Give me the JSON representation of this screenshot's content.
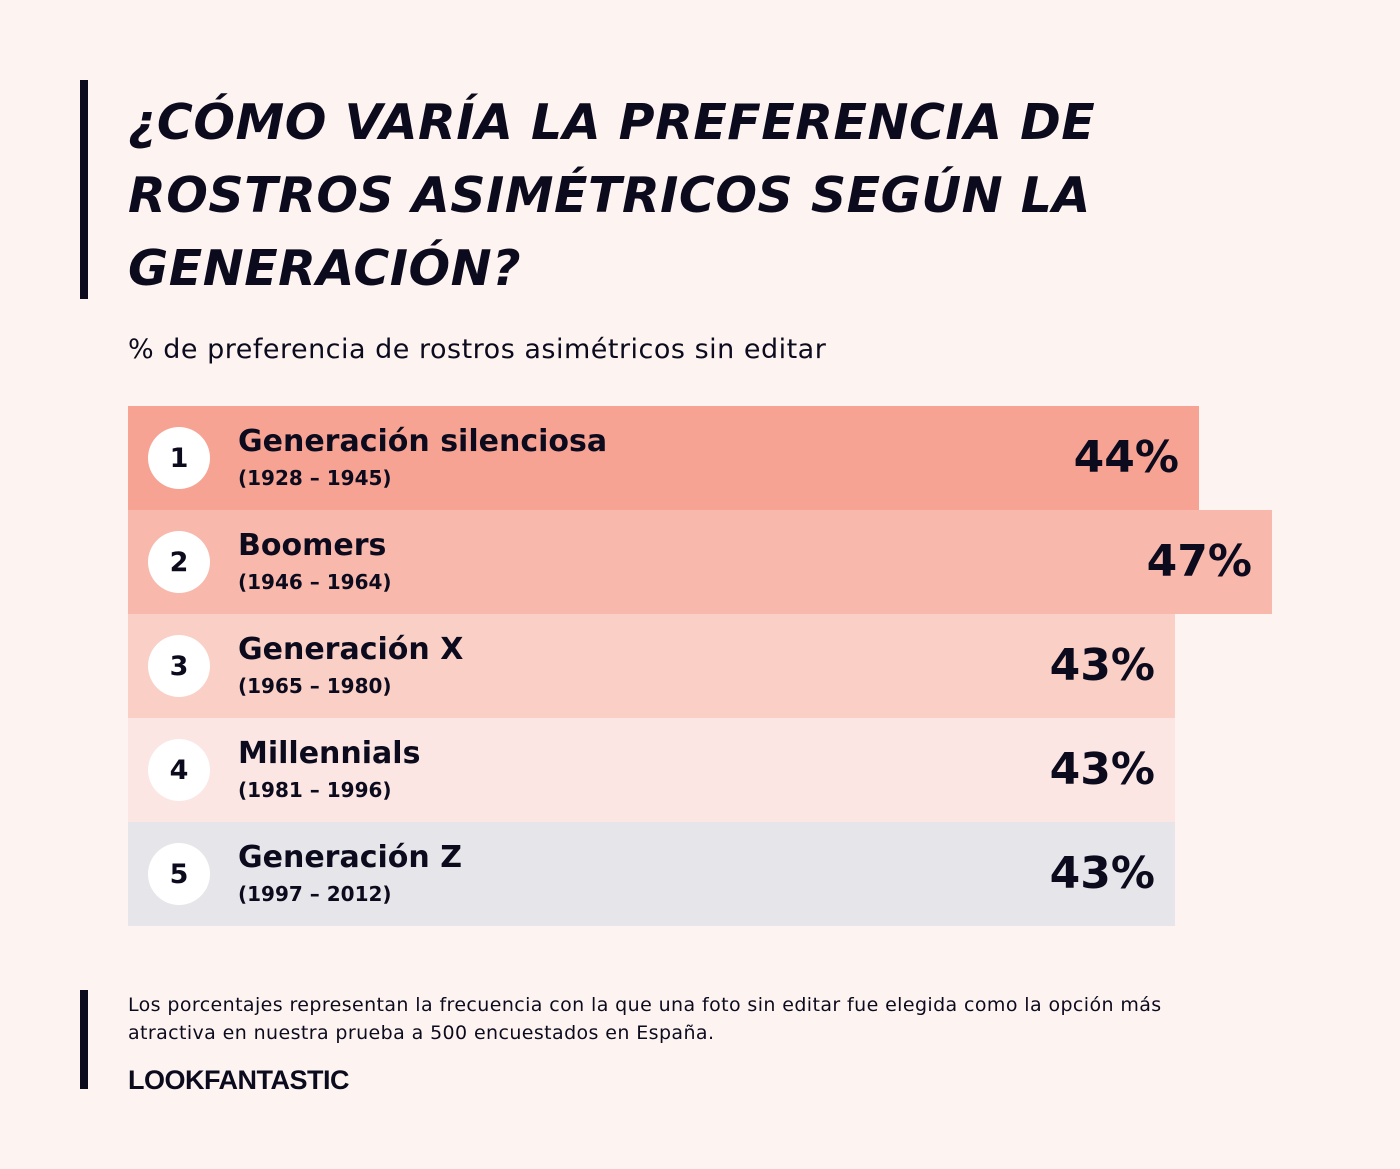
{
  "chart_data": {
    "type": "bar",
    "title": "¿CÓMO VARÍA LA PREFERENCIA DE ROSTROS ASIMÉTRICOS SEGÚN LA GENERACIÓN?",
    "subtitle": "% de preferencia de rostros asimétricos sin editar",
    "orientation": "horizontal",
    "categories": [
      "Generación silenciosa",
      "Boomers",
      "Generación X",
      "Millennials",
      "Generación Z"
    ],
    "series": [
      {
        "values": [
          44,
          47,
          43,
          43,
          43
        ]
      }
    ],
    "items": [
      {
        "rank": "1",
        "name": "Generación silenciosa",
        "years": "(1928 – 1945)",
        "value": 44,
        "label": "44%",
        "color": "#f6a394"
      },
      {
        "rank": "2",
        "name": "Boomers",
        "years": "(1946 – 1964)",
        "value": 47,
        "label": "47%",
        "color": "#f8b8ac"
      },
      {
        "rank": "3",
        "name": "Generación X",
        "years": "(1965 – 1980)",
        "value": 43,
        "label": "43%",
        "color": "#facfc6"
      },
      {
        "rank": "4",
        "name": "Millennials",
        "years": "(1981 – 1996)",
        "value": 43,
        "label": "43%",
        "color": "#fbe6e3"
      },
      {
        "rank": "5",
        "name": "Generación Z",
        "years": "(1997 – 2012)",
        "value": 43,
        "label": "43%",
        "color": "#e6e5e9"
      }
    ]
  },
  "footer": {
    "note": "Los porcentajes representan la frecuencia con la que una foto sin editar fue elegida como la opción más atractiva en nuestra prueba a 500 encuestados en España.",
    "brand": "LOOKFANTASTIC"
  }
}
